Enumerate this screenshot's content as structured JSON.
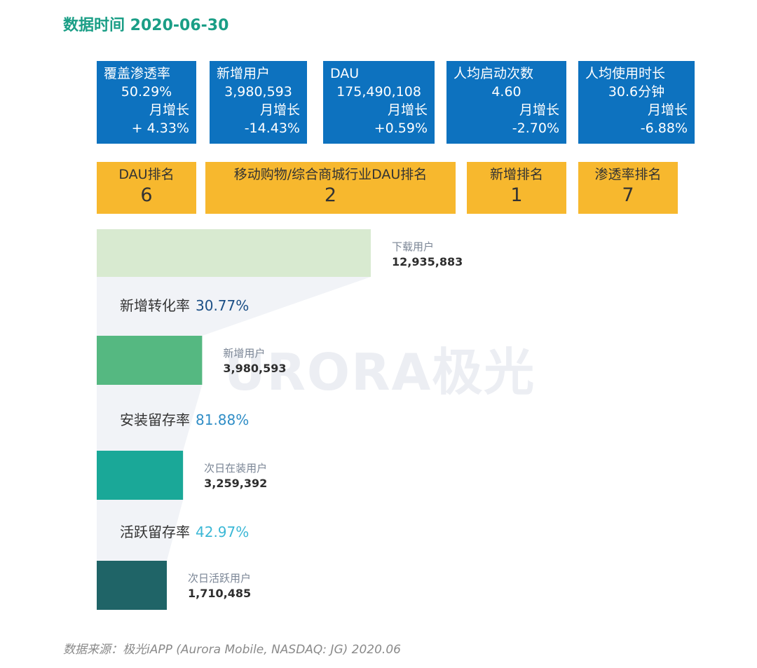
{
  "title": "数据时间 2020-06-30",
  "kpis": [
    {
      "label": "覆盖渗透率",
      "value": "50.29%",
      "growth_label": "月增长",
      "growth": "+ 4.33%"
    },
    {
      "label": "新增用户",
      "value": "3,980,593",
      "growth_label": "月增长",
      "growth": "-14.43%"
    },
    {
      "label": "DAU",
      "value": "175,490,108",
      "growth_label": "月增长",
      "growth": "+0.59%"
    },
    {
      "label": "人均启动次数",
      "value": "4.60",
      "growth_label": "月增长",
      "growth": "-2.70%"
    },
    {
      "label": "人均使用时长",
      "value": "30.6分钟",
      "growth_label": "月增长",
      "growth": "-6.88%"
    }
  ],
  "ranks": [
    {
      "label": "DAU排名",
      "value": "6"
    },
    {
      "label": "移动购物/综合商城行业DAU排名",
      "value": "2"
    },
    {
      "label": "新增排名",
      "value": "1"
    },
    {
      "label": "渗透率排名",
      "value": "7"
    }
  ],
  "chart_data": {
    "type": "bar",
    "orientation": "horizontal-funnel",
    "categories": [
      "下载用户",
      "新增用户",
      "次日在装用户",
      "次日活跃用户"
    ],
    "values": [
      12935883,
      3980593,
      3259392,
      1710485
    ],
    "value_labels": [
      "12,935,883",
      "3,980,593",
      "3,259,392",
      "1,710,485"
    ],
    "colors": [
      "#d8ead0",
      "#55b881",
      "#1aa898",
      "#1f6467"
    ],
    "conversions": [
      {
        "label": "新增转化率",
        "value": "30.77%",
        "color": "#1b4f86"
      },
      {
        "label": "安装留存率",
        "value": "81.88%",
        "color": "#2f8dc6"
      },
      {
        "label": "活跃留存率",
        "value": "42.97%",
        "color": "#3cb8d6"
      }
    ]
  },
  "watermark": "URORA极光",
  "source": "数据来源：极光iAPP (Aurora Mobile, NASDAQ: JG) 2020.06"
}
